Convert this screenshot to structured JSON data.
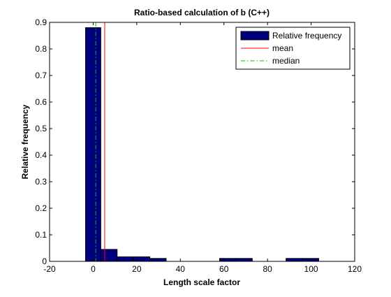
{
  "chart_data": {
    "type": "bar",
    "subtype": "histogram",
    "title": "Ratio-based calculation of b (C++)",
    "xlabel": "Length scale factor",
    "ylabel": "Relative frequency",
    "xlim": [
      -20,
      120
    ],
    "ylim": [
      0,
      0.9
    ],
    "xticks": [
      -20,
      0,
      20,
      40,
      60,
      80,
      100,
      120
    ],
    "yticks": [
      0,
      0.1,
      0.2,
      0.3,
      0.4,
      0.5,
      0.6,
      0.7,
      0.8,
      0.9
    ],
    "bar_color": "#00007F",
    "bar_edge_color": "#000000",
    "bins": [
      {
        "x0": -3.5,
        "x1": 3.5,
        "value": 0.88
      },
      {
        "x0": 3.5,
        "x1": 11,
        "value": 0.045
      },
      {
        "x0": 11,
        "x1": 18.5,
        "value": 0.017
      },
      {
        "x0": 18.5,
        "x1": 26,
        "value": 0.017
      },
      {
        "x0": 26,
        "x1": 33.5,
        "value": 0.011
      },
      {
        "x0": 58,
        "x1": 65.5,
        "value": 0.011
      },
      {
        "x0": 65.5,
        "x1": 73,
        "value": 0.011
      },
      {
        "x0": 88.5,
        "x1": 96,
        "value": 0.011
      },
      {
        "x0": 96,
        "x1": 103.5,
        "value": 0.011
      }
    ],
    "mean": {
      "value": 5.3,
      "color": "#FF0000",
      "style": "solid"
    },
    "median": {
      "value": 1.2,
      "color": "#00BF00",
      "style": "dash-dot"
    },
    "legend": {
      "placement": "top-right",
      "entries": [
        {
          "label": "Relative frequency",
          "kind": "patch",
          "color": "#00007F"
        },
        {
          "label": "mean",
          "kind": "line",
          "color": "#FF0000"
        },
        {
          "label": "median",
          "kind": "line",
          "color": "#00BF00"
        }
      ]
    }
  }
}
